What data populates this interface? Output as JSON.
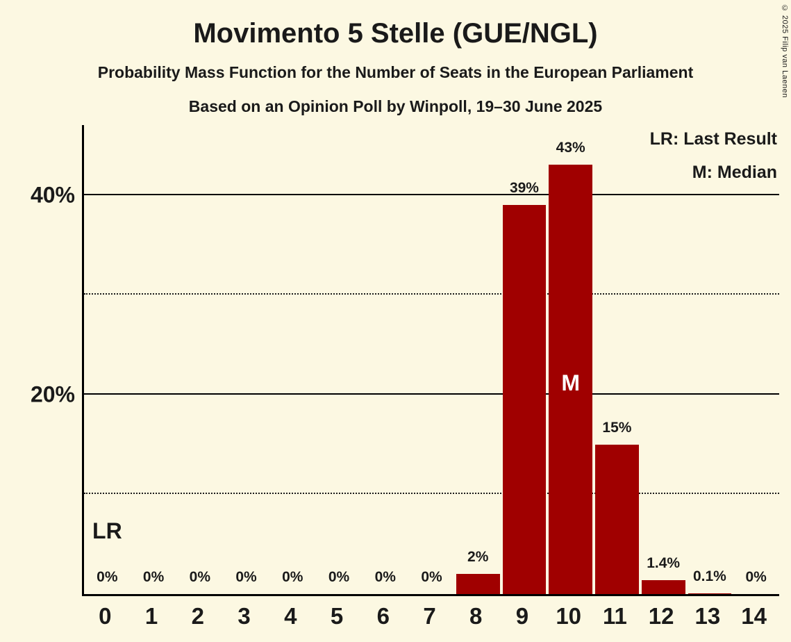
{
  "title": "Movimento 5 Stelle (GUE/NGL)",
  "subtitle1": "Probability Mass Function for the Number of Seats in the European Parliament",
  "subtitle2": "Based on an Opinion Poll by Winpoll, 19–30 June 2025",
  "legend": {
    "lr": "LR: Last Result",
    "m": "M: Median"
  },
  "copyright": "© 2025 Filip van Laenen",
  "colors": {
    "background": "#FCF8E2",
    "bar": "#A00000",
    "text": "#1A1A1A"
  },
  "chart_data": {
    "type": "bar",
    "title": "Movimento 5 Stelle (GUE/NGL)",
    "xlabel": "",
    "ylabel": "",
    "categories": [
      "0",
      "1",
      "2",
      "3",
      "4",
      "5",
      "6",
      "7",
      "8",
      "9",
      "10",
      "11",
      "12",
      "13",
      "14"
    ],
    "values": [
      0,
      0,
      0,
      0,
      0,
      0,
      0,
      0,
      2,
      39,
      43,
      15,
      1.4,
      0.1,
      0
    ],
    "value_labels": [
      "0%",
      "0%",
      "0%",
      "0%",
      "0%",
      "0%",
      "0%",
      "0%",
      "2%",
      "39%",
      "43%",
      "15%",
      "1.4%",
      "0.1%",
      "0%"
    ],
    "ylim": [
      0,
      47
    ],
    "grid": true,
    "solid_gridlines": [
      20,
      40
    ],
    "dotted_gridlines": [
      10,
      30
    ],
    "ytick_labels": [
      {
        "value": 20,
        "label": "20%"
      },
      {
        "value": 40,
        "label": "40%"
      }
    ],
    "median_seat": "10",
    "median_label": "M",
    "last_result_seat": "0",
    "last_result_label": "LR",
    "legend_position": "top-right"
  }
}
